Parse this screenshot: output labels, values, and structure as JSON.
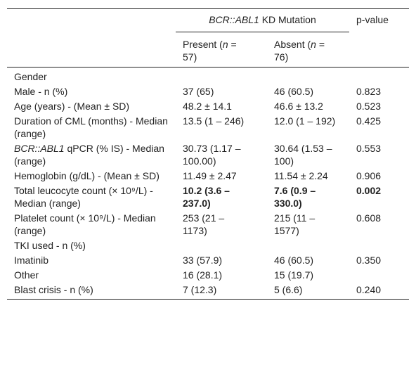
{
  "header": {
    "group": [
      {
        "text": "BCR::ABL1",
        "italic": true
      },
      {
        "text": " KD Mutation"
      }
    ],
    "pvalue": "p-value",
    "present": [
      {
        "text": "Present ("
      },
      {
        "text": "n",
        "italic": true
      },
      {
        "text": " = 57)"
      }
    ],
    "absent": [
      {
        "text": "Absent ("
      },
      {
        "text": "n",
        "italic": true
      },
      {
        "text": " = 76)"
      }
    ]
  },
  "table": {
    "rows": [
      {
        "cells": [
          "Gender"
        ]
      },
      {
        "cells": [
          "Male - n (%)",
          "37 (65)",
          "46 (60.5)",
          "0.823"
        ]
      },
      {
        "cells": [
          "Age (years) - (Mean ± SD)",
          "48.2 ± 14.1",
          "46.6 ± 13.2",
          "0.523"
        ]
      },
      {
        "cells": [
          "Duration of CML (months) - Median (range)",
          "13.5 (1 – 246)",
          "12.0 (1 – 192)",
          "0.425"
        ]
      },
      {
        "cells": [
          [
            {
              "text": "BCR::ABL1",
              "italic": true
            },
            {
              "text": " qPCR (% IS) - Median (range)"
            }
          ],
          "30.73 (1.17 – 100.00)",
          "30.64 (1.53 – 100)",
          "0.553"
        ]
      },
      {
        "cells": [
          "Hemoglobin (g/dL) - (Mean ± SD)",
          "11.49 ± 2.47",
          "11.54 ± 2.24",
          "0.906"
        ]
      },
      {
        "cells": [
          "Total leucocyte count (× 10⁹/L) - Median (range)",
          "10.2 (3.6 – 237.0)",
          "7.6 (0.9 – 330.0)",
          "0.002"
        ],
        "bold": true
      },
      {
        "cells": [
          "Platelet count (× 10⁹/L) - Median (range)",
          "253 (21 – 1173)",
          "215 (11 – 1577)",
          "0.608"
        ]
      },
      {
        "cells": [
          "TKI used - n (%)"
        ]
      },
      {
        "cells": [
          "Imatinib",
          "33 (57.9)",
          "46 (60.5)",
          "0.350"
        ]
      },
      {
        "cells": [
          "Other",
          "16 (28.1)",
          "15 (19.7)"
        ]
      },
      {
        "cells": [
          "Blast crisis - n (%)",
          "7 (12.3)",
          "5 (6.6)",
          "0.240"
        ]
      }
    ]
  }
}
